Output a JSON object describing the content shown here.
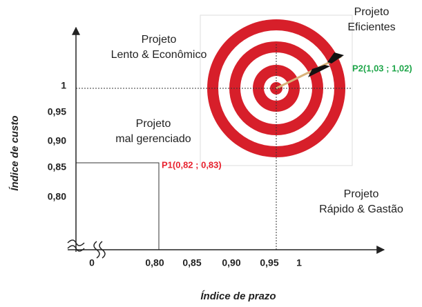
{
  "diagram": {
    "y_axis_title": "Índice de custo",
    "x_axis_title": "Índice de prazo",
    "y_ticks": [
      "1",
      "0,95",
      "0,90",
      "0,85",
      "0,80"
    ],
    "x_ticks": [
      "0",
      "0,80",
      "0,85",
      "0,90",
      "0,95",
      "1"
    ],
    "quadrants": [
      {
        "lines": [
          "Projeto",
          "Lento & Econômico"
        ]
      },
      {
        "lines": [
          "Projeto",
          "Eficientes"
        ]
      },
      {
        "lines": [
          "Projeto",
          "mal gerenciado"
        ]
      },
      {
        "lines": [
          "Projeto",
          "Rápido & Gastão"
        ]
      }
    ],
    "points": [
      {
        "label": "P1(0,82 ; 0,83)",
        "color": "#e8222f"
      },
      {
        "label": "P2(1,03 ; 1,02)",
        "color": "#1fa64a"
      }
    ]
  }
}
